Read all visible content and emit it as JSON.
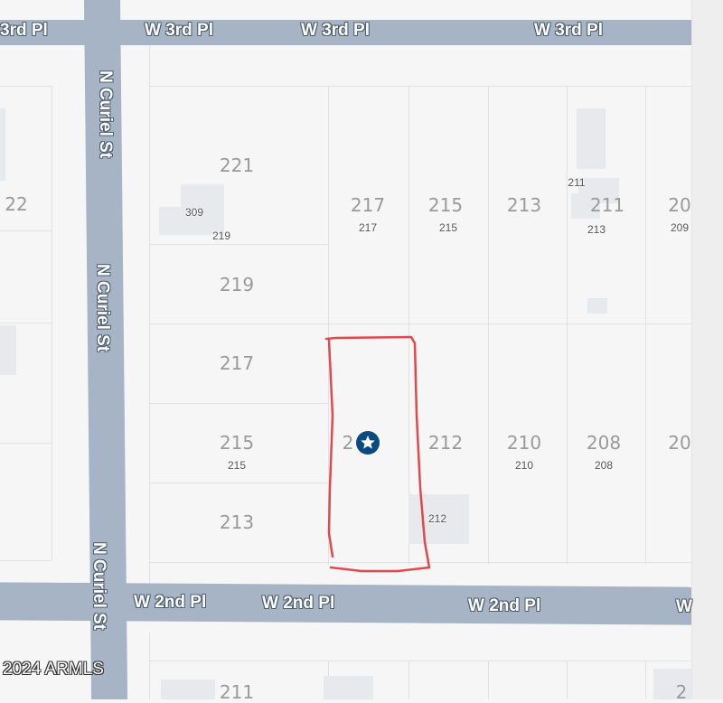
{
  "map": {
    "streets": {
      "w3rd": [
        "3rd Pl",
        "W 3rd Pl",
        "W 3rd Pl",
        "W 3rd Pl"
      ],
      "w2nd": [
        "W 2nd Pl",
        "W 2nd Pl",
        "W 2nd Pl",
        "W"
      ],
      "curiel": [
        "N Curiel St",
        "N Curiel St",
        "N Curiel St"
      ]
    },
    "lot_numbers": {
      "large": [
        "221",
        "22",
        "217",
        "215",
        "213",
        "211",
        "20",
        "219",
        "217",
        "215",
        "2",
        "212",
        "210",
        "208",
        "20",
        "213",
        "211",
        "2"
      ],
      "small": [
        "309",
        "219",
        "217",
        "215",
        "211",
        "213",
        "209",
        "215",
        "210",
        "208",
        "212"
      ]
    },
    "marker": {
      "icon": "star-pin-icon",
      "color": "#0b4a80"
    },
    "highlight": {
      "color": "#e0353a"
    },
    "road_color": "#a6b4c5",
    "copyright": "2024 ARMLS"
  }
}
